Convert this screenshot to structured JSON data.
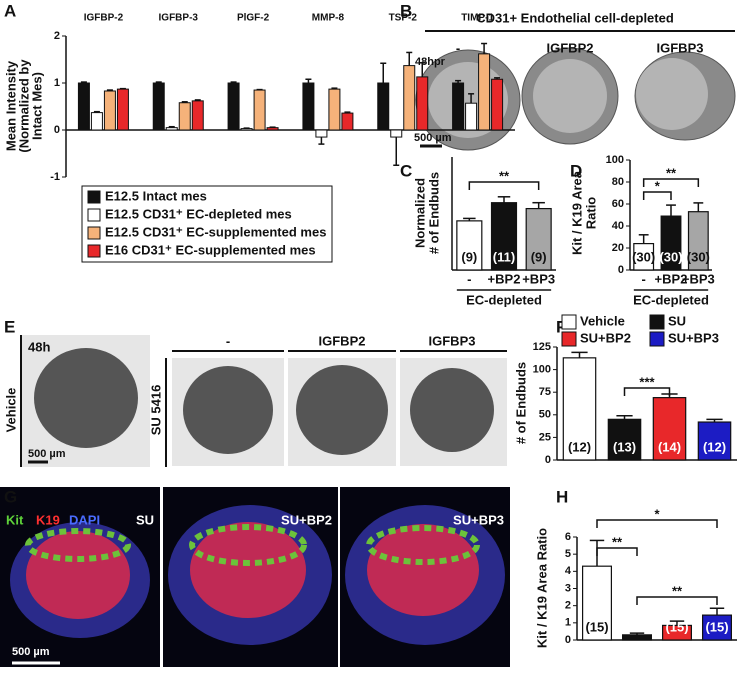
{
  "panels": {
    "B": {
      "letter": "B",
      "title": "CD31+ Endothelial cell-depleted",
      "columns": [
        "-",
        "IGFBP2",
        "IGFBP3"
      ],
      "time": "48hpr",
      "scale": "500 µm"
    },
    "E": {
      "letter": "E",
      "time": "48h",
      "rows": [
        "Vehicle",
        "SU 5416"
      ],
      "columns": [
        "-",
        "IGFBP2",
        "IGFBP3"
      ],
      "scale": "500 µm"
    },
    "G": {
      "letter": "G",
      "stains": [
        "Kit",
        "K19",
        "DAPI"
      ],
      "columns": [
        "SU",
        "SU+BP2",
        "SU+BP3"
      ],
      "scale": "500 µm"
    }
  },
  "chart_data": [
    {
      "type": "bar",
      "panel": "A",
      "categories": [
        "IGFBP-2",
        "IGFBP-3",
        "PlGF-2",
        "MMP-8",
        "TSP-2",
        "TIMP-1"
      ],
      "series": [
        {
          "name": "E12.5 Intact mes",
          "color": "#111111",
          "values": [
            1.0,
            1.0,
            1.0,
            1.0,
            1.0,
            1.0
          ],
          "errors": [
            0.02,
            0.02,
            0.02,
            0.08,
            0.42,
            0.05
          ]
        },
        {
          "name": "E12.5 CD31⁺ EC-depleted mes",
          "color": "#ffffff",
          "values": [
            0.37,
            0.05,
            0.03,
            -0.15,
            -0.15,
            0.57
          ],
          "errors": [
            0.02,
            0.02,
            0.01,
            0.15,
            0.6,
            0.2
          ]
        },
        {
          "name": "E12.5 CD31⁺ EC-supplemented mes",
          "color": "#f5b27a",
          "values": [
            0.83,
            0.58,
            0.85,
            0.87,
            1.37,
            1.62
          ],
          "errors": [
            0.02,
            0.02,
            0.01,
            0.02,
            0.28,
            0.22
          ]
        },
        {
          "name": "E16 CD31⁺ EC-supplemented mes",
          "color": "#e8282a",
          "values": [
            0.87,
            0.62,
            0.05,
            0.36,
            1.13,
            1.08
          ],
          "errors": [
            0.01,
            0.02,
            0.01,
            0.02,
            0.3,
            0.03
          ]
        }
      ],
      "ylim": [
        -1,
        2
      ],
      "yticks": [
        -1,
        0,
        1,
        2
      ],
      "ylabel": [
        "Mean Intensity",
        "(Normalized by",
        "Intact Mes)"
      ]
    },
    {
      "type": "bar",
      "panel": "C",
      "categories": [
        "-",
        "+BP2",
        "+BP3"
      ],
      "values": [
        1.0,
        1.37,
        1.25
      ],
      "errors": [
        0.05,
        0.12,
        0.12
      ],
      "colors": [
        "#ffffff",
        "#111111",
        "#a6a6a6"
      ],
      "n_labels": [
        "(9)",
        "(11)",
        "(9)"
      ],
      "ylim": [
        0,
        2.3
      ],
      "ylabel": [
        "Normalized",
        "# of Endbuds"
      ],
      "xlabel": "EC-depleted",
      "annotations": [
        "**"
      ]
    },
    {
      "type": "bar",
      "panel": "D",
      "categories": [
        "-",
        "+BP2",
        "+BP3"
      ],
      "values": [
        24,
        49,
        53
      ],
      "errors": [
        8,
        10,
        8
      ],
      "colors": [
        "#ffffff",
        "#111111",
        "#a6a6a6"
      ],
      "n_labels": [
        "(30)",
        "(30)",
        "(30)"
      ],
      "ylim": [
        0,
        100
      ],
      "yticks": [
        0,
        20,
        40,
        60,
        80,
        100
      ],
      "ylabel": [
        "Kit / K19 Area",
        "Ratio"
      ],
      "xlabel": "EC-depleted",
      "annotations": [
        "*",
        "**"
      ]
    },
    {
      "type": "bar",
      "panel": "F",
      "legend": [
        "Vehicle",
        "SU",
        "SU+BP2",
        "SU+BP3"
      ],
      "values": [
        113,
        45,
        69,
        42
      ],
      "errors": [
        6,
        4,
        4,
        3
      ],
      "colors": [
        "#ffffff",
        "#111111",
        "#e8282a",
        "#1c1cc4"
      ],
      "n_labels": [
        "(12)",
        "(13)",
        "(14)",
        "(12)"
      ],
      "ylim": [
        0,
        125
      ],
      "yticks": [
        0,
        25,
        50,
        75,
        100,
        125
      ],
      "ylabel": [
        "# of Endbuds"
      ],
      "annotations": [
        "***"
      ]
    },
    {
      "type": "bar",
      "panel": "H",
      "values": [
        4.3,
        0.3,
        0.85,
        1.45
      ],
      "errors": [
        1.5,
        0.1,
        0.25,
        0.4
      ],
      "colors": [
        "#ffffff",
        "#111111",
        "#e8282a",
        "#1c1cc4"
      ],
      "n_labels": [
        "(15)",
        "(15)",
        "(15)",
        "(15)"
      ],
      "ylim": [
        0,
        6
      ],
      "yticks": [
        0,
        1,
        2,
        3,
        4,
        5,
        6
      ],
      "ylabel": [
        "Kit / K19 Area Ratio"
      ],
      "annotations": [
        "**",
        "*",
        "**"
      ]
    }
  ]
}
